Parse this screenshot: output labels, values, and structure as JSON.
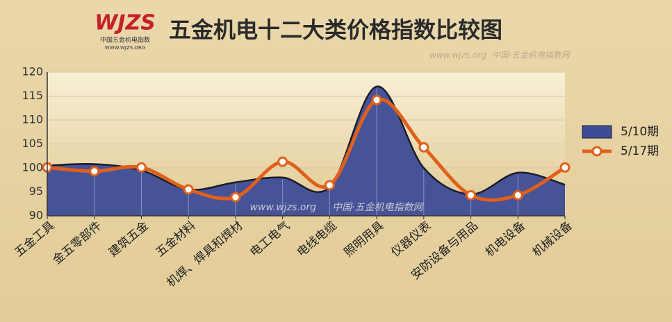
{
  "logo": {
    "mark": "WJZS",
    "name": "中国五金机电指数",
    "url": "WWW.WJZS.ORG"
  },
  "watermark_url": "www.wjzs.org",
  "watermark_site": "中国·五金机电指数网",
  "chart_data": {
    "type": "combo",
    "title": "五金机电十二大类价格指数比较图",
    "categories": [
      "五金工具",
      "金五零部件",
      "建筑五金",
      "五金材料",
      "机焊、焊具和焊材",
      "电工电气",
      "电线电缆",
      "照明用具",
      "仪器仪表",
      "安防设备与用品",
      "机电设备",
      "机械设备"
    ],
    "series": [
      {
        "name": "5/10期",
        "type": "area",
        "color": "#3d4c96",
        "values": [
          100.5,
          100.8,
          99.5,
          95.5,
          97,
          98,
          96,
          117,
          100,
          94.5,
          99,
          96.5
        ]
      },
      {
        "name": "5/17期",
        "type": "line",
        "color": "#e0601b",
        "values": [
          100.1,
          99.3,
          100.1,
          95.5,
          93.9,
          101.3,
          96.4,
          114.2,
          104.3,
          94.3,
          94.3,
          100.1
        ]
      }
    ],
    "ylim": [
      90,
      120
    ],
    "yticks": [
      90,
      95,
      100,
      105,
      110,
      115,
      120
    ],
    "grid": true,
    "legend": "right"
  }
}
